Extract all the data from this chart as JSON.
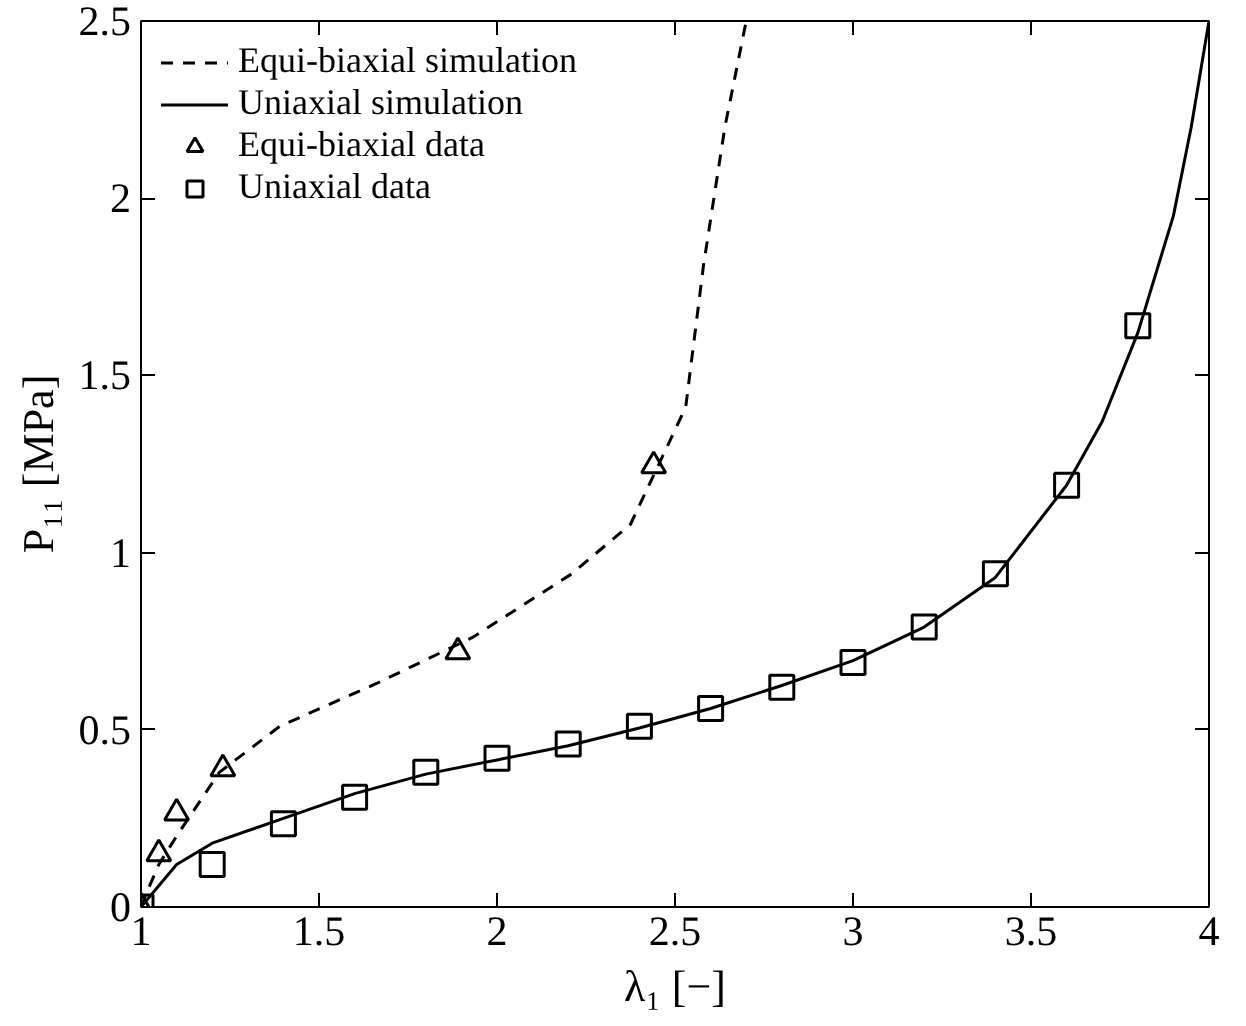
{
  "chart_data": {
    "type": "line",
    "xlabel": "λ₁ [−]",
    "ylabel": "P₁₁ [MPa]",
    "xlim": [
      1,
      4
    ],
    "ylim": [
      0,
      2.5
    ],
    "xticks": [
      1,
      1.5,
      2,
      2.5,
      3,
      3.5,
      4
    ],
    "yticks": [
      0,
      0.5,
      1,
      1.5,
      2,
      2.5
    ],
    "grid": false,
    "legend": "top left",
    "series": [
      {
        "name": "Equi-biaxial simulation",
        "line_style": "dashed",
        "color": "#000000",
        "x": [
          1,
          1.02,
          1.05,
          1.1,
          1.22,
          1.39,
          1.66,
          1.93,
          2.21,
          2.375,
          2.53,
          2.58,
          2.64,
          2.7
        ],
        "values": [
          0,
          0.05,
          0.12,
          0.2,
          0.38,
          0.51,
          0.63,
          0.76,
          0.94,
          1.08,
          1.41,
          1.81,
          2.2,
          2.5
        ]
      },
      {
        "name": "Uniaxial simulation",
        "line_style": "solid",
        "color": "#000000",
        "x": [
          1,
          1.1,
          1.2,
          1.4,
          1.6,
          1.8,
          2,
          2.2,
          2.4,
          2.6,
          2.8,
          3,
          3.2,
          3.4,
          3.6,
          3.7,
          3.8,
          3.9,
          3.95,
          4
        ],
        "values": [
          0,
          0.12,
          0.18,
          0.25,
          0.32,
          0.375,
          0.415,
          0.455,
          0.505,
          0.56,
          0.625,
          0.695,
          0.79,
          0.93,
          1.19,
          1.37,
          1.62,
          1.95,
          2.2,
          2.5
        ]
      },
      {
        "name": "Equi-biaxial data",
        "type": "scatter",
        "marker": "triangle",
        "color": "#000000",
        "x": [
          1,
          1.05,
          1.1,
          1.23,
          1.89,
          2.44
        ],
        "values": [
          0,
          0.15,
          0.265,
          0.39,
          0.72,
          1.245
        ]
      },
      {
        "name": "Uniaxial data",
        "type": "scatter",
        "marker": "square",
        "color": "#000000",
        "x": [
          1,
          1.2,
          1.4,
          1.6,
          1.8,
          2,
          2.2,
          2.4,
          2.6,
          2.8,
          3,
          3.2,
          3.4,
          3.6,
          3.8
        ],
        "values": [
          0,
          0.12,
          0.235,
          0.31,
          0.38,
          0.42,
          0.46,
          0.51,
          0.56,
          0.62,
          0.69,
          0.79,
          0.94,
          1.19,
          1.64
        ]
      }
    ]
  }
}
